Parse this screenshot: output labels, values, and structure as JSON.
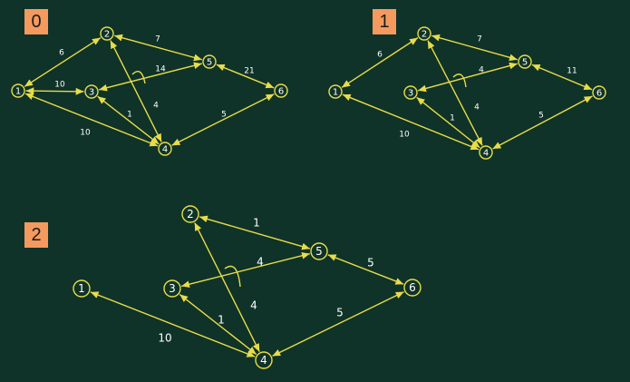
{
  "colors": {
    "background": "#0f3328",
    "edge": "#e8dc4a",
    "node_stroke": "#e8dc4a",
    "text": "#ffffff",
    "badge": "#f59a5f"
  },
  "panels": [
    {
      "label": "0",
      "nodes": [
        "1",
        "2",
        "3",
        "4",
        "5",
        "6"
      ],
      "edges": [
        {
          "from": "1",
          "to": "2",
          "weight": "6"
        },
        {
          "from": "1",
          "to": "3",
          "weight": "10"
        },
        {
          "from": "1",
          "to": "4",
          "weight": "10"
        },
        {
          "from": "2",
          "to": "5",
          "weight": "7"
        },
        {
          "from": "2",
          "to": "4",
          "weight": "4"
        },
        {
          "from": "3",
          "to": "5",
          "weight": "14"
        },
        {
          "from": "3",
          "to": "4",
          "weight": "1"
        },
        {
          "from": "5",
          "to": "6",
          "weight": "21"
        },
        {
          "from": "4",
          "to": "6",
          "weight": "5"
        }
      ]
    },
    {
      "label": "1",
      "nodes": [
        "1",
        "2",
        "3",
        "4",
        "5",
        "6"
      ],
      "edges": [
        {
          "from": "1",
          "to": "2",
          "weight": "6"
        },
        {
          "from": "1",
          "to": "4",
          "weight": "10"
        },
        {
          "from": "2",
          "to": "5",
          "weight": "7"
        },
        {
          "from": "2",
          "to": "4",
          "weight": "4"
        },
        {
          "from": "3",
          "to": "5",
          "weight": "4"
        },
        {
          "from": "3",
          "to": "4",
          "weight": "1"
        },
        {
          "from": "5",
          "to": "6",
          "weight": "11"
        },
        {
          "from": "4",
          "to": "6",
          "weight": "5"
        }
      ]
    },
    {
      "label": "2",
      "nodes": [
        "1",
        "2",
        "3",
        "4",
        "5",
        "6"
      ],
      "edges": [
        {
          "from": "1",
          "to": "4",
          "weight": "10"
        },
        {
          "from": "2",
          "to": "5",
          "weight": "1"
        },
        {
          "from": "2",
          "to": "4",
          "weight": "4"
        },
        {
          "from": "3",
          "to": "5",
          "weight": "4"
        },
        {
          "from": "3",
          "to": "4",
          "weight": "1"
        },
        {
          "from": "5",
          "to": "6",
          "weight": "5"
        },
        {
          "from": "4",
          "to": "6",
          "weight": "5"
        }
      ]
    }
  ]
}
